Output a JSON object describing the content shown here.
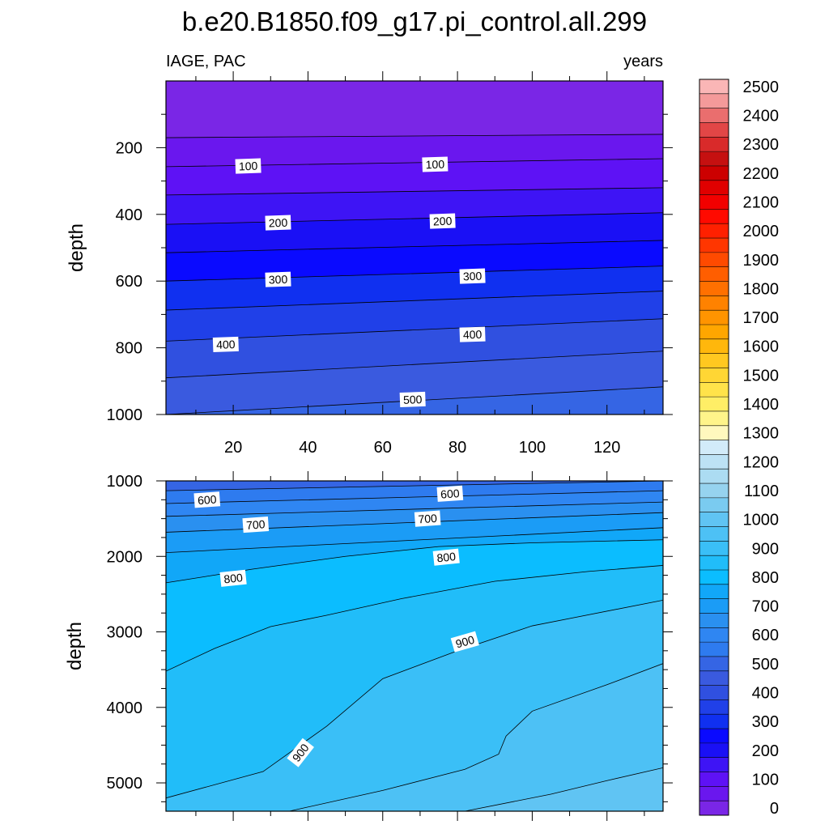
{
  "chart_data": [
    {
      "type": "contour",
      "panel": "upper",
      "title": "b.e20.B1850.f09_g17.pi_control.all.299",
      "left_label": "IAGE, PAC",
      "right_label": "years",
      "xlabel": "",
      "ylabel": "depth",
      "xlim": [
        2,
        135
      ],
      "ylim": [
        1000,
        0
      ],
      "x_ticks": [
        "20",
        "40",
        "60",
        "80",
        "100",
        "120"
      ],
      "y_ticks": [
        "200",
        "400",
        "600",
        "800",
        "1000"
      ],
      "contour_interval": 50,
      "isolines": [
        {
          "level": 50,
          "depth_left": 170,
          "depth_right": 160
        },
        {
          "level": 100,
          "depth_left": 257,
          "depth_right": 233
        },
        {
          "level": 150,
          "depth_left": 342,
          "depth_right": 320
        },
        {
          "level": 200,
          "depth_left": 430,
          "depth_right": 395
        },
        {
          "level": 250,
          "depth_left": 515,
          "depth_right": 478
        },
        {
          "level": 300,
          "depth_left": 600,
          "depth_right": 555
        },
        {
          "level": 350,
          "depth_left": 687,
          "depth_right": 630
        },
        {
          "level": 400,
          "depth_left": 780,
          "depth_right": 713
        },
        {
          "level": 450,
          "depth_left": 890,
          "depth_right": 810
        },
        {
          "level": 500,
          "depth_left": 1000,
          "depth_right": 917
        }
      ],
      "labels": [
        {
          "text": "100",
          "x": 24,
          "depth": 255
        },
        {
          "text": "100",
          "x": 74,
          "depth": 250
        },
        {
          "text": "200",
          "x": 32,
          "depth": 425
        },
        {
          "text": "200",
          "x": 76,
          "depth": 420
        },
        {
          "text": "300",
          "x": 32,
          "depth": 595
        },
        {
          "text": "300",
          "x": 84,
          "depth": 585
        },
        {
          "text": "400",
          "x": 18,
          "depth": 790
        },
        {
          "text": "400",
          "x": 84,
          "depth": 760
        },
        {
          "text": "500",
          "x": 68,
          "depth": 955
        }
      ]
    },
    {
      "type": "contour",
      "panel": "lower",
      "xlabel": "",
      "ylabel": "depth",
      "xlim": [
        2,
        135
      ],
      "ylim": [
        1000,
        5375
      ],
      "y_ticks": [
        "1000",
        "2000",
        "3000",
        "4000",
        "5000"
      ],
      "contour_interval": 50,
      "isolines": [
        {
          "level": 550,
          "points": [
            [
              2,
              1130
            ],
            [
              135,
              1000
            ]
          ]
        },
        {
          "level": 600,
          "points": [
            [
              2,
              1300
            ],
            [
              135,
              1130
            ]
          ]
        },
        {
          "level": 650,
          "points": [
            [
              2,
              1470
            ],
            [
              135,
              1280
            ]
          ]
        },
        {
          "level": 700,
          "points": [
            [
              2,
              1680
            ],
            [
              135,
              1420
            ]
          ]
        },
        {
          "level": 750,
          "points": [
            [
              2,
              1950
            ],
            [
              135,
              1620
            ]
          ]
        },
        {
          "level": 800,
          "points": [
            [
              2,
              2350
            ],
            [
              25,
              2170
            ],
            [
              50,
              2000
            ],
            [
              75,
              1870
            ],
            [
              100,
              1820
            ],
            [
              135,
              1780
            ]
          ]
        },
        {
          "level": 850,
          "points": [
            [
              2,
              3520
            ],
            [
              15,
              3220
            ],
            [
              30,
              2930
            ],
            [
              45,
              2780
            ],
            [
              65,
              2560
            ],
            [
              90,
              2330
            ],
            [
              115,
              2200
            ],
            [
              135,
              2120
            ]
          ]
        },
        {
          "level": 900,
          "points": [
            [
              2,
              5200
            ],
            [
              28,
              4850
            ],
            [
              45,
              4250
            ],
            [
              60,
              3620
            ],
            [
              80,
              3250
            ],
            [
              100,
              2920
            ],
            [
              135,
              2580
            ]
          ]
        },
        {
          "level": 950,
          "points": [
            [
              35,
              5375
            ],
            [
              60,
              5100
            ],
            [
              82,
              4820
            ],
            [
              91,
              4620
            ],
            [
              93,
              4380
            ],
            [
              100,
              4050
            ],
            [
              120,
              3700
            ],
            [
              135,
              3420
            ]
          ]
        },
        {
          "level": 1000,
          "points": [
            [
              82,
              5375
            ],
            [
              105,
              5150
            ],
            [
              120,
              4970
            ],
            [
              135,
              4800
            ]
          ]
        }
      ],
      "labels": [
        {
          "text": "600",
          "x": 13,
          "depth": 1250
        },
        {
          "text": "600",
          "x": 78,
          "depth": 1170
        },
        {
          "text": "700",
          "x": 26,
          "depth": 1580
        },
        {
          "text": "700",
          "x": 72,
          "depth": 1500
        },
        {
          "text": "800",
          "x": 20,
          "depth": 2290
        },
        {
          "text": "800",
          "x": 77,
          "depth": 2010
        },
        {
          "text": "900",
          "x": 82,
          "depth": 3130
        },
        {
          "text": "900",
          "x": 38,
          "depth": 4600
        }
      ]
    },
    {
      "type": "colorbar",
      "levels": [
        0,
        50,
        100,
        150,
        200,
        250,
        300,
        350,
        400,
        450,
        500,
        550,
        600,
        650,
        700,
        750,
        800,
        850,
        900,
        950,
        1000,
        1050,
        1100,
        1150,
        1200,
        1250,
        1300,
        1350,
        1400,
        1450,
        1500,
        1550,
        1600,
        1650,
        1700,
        1750,
        1800,
        1850,
        1900,
        1950,
        2000,
        2050,
        2100,
        2150,
        2200,
        2250,
        2300,
        2350,
        2400,
        2450,
        2500,
        2550
      ],
      "tick_labels": [
        "0",
        "100",
        "200",
        "300",
        "400",
        "500",
        "600",
        "700",
        "800",
        "900",
        "1000",
        "1100",
        "1200",
        "1300",
        "1400",
        "1500",
        "1600",
        "1700",
        "1800",
        "1900",
        "2000",
        "2100",
        "2200",
        "2300",
        "2400",
        "2500"
      ],
      "colors": [
        "#7A26E6",
        "#6A17EE",
        "#5E12F5",
        "#3E14F5",
        "#1A10F5",
        "#0A0AFF",
        "#1030F0",
        "#2040E8",
        "#3050E0",
        "#3A5ADF",
        "#3565E4",
        "#2E7BEF",
        "#2F86F2",
        "#2A90F0",
        "#1B9CF6",
        "#11A7F8",
        "#0BBDFF",
        "#21BDF9",
        "#3ABFF7",
        "#4DC1F5",
        "#60C4F3",
        "#7ACBF0",
        "#96D3EF",
        "#ACDCF2",
        "#BDE2F5",
        "#D2EBF9",
        "#FFF8BE",
        "#FFF48A",
        "#FFEE66",
        "#FFE34A",
        "#FFD634",
        "#FFC820",
        "#FFB70C",
        "#FFA600",
        "#FF9400",
        "#FF8200",
        "#FF7000",
        "#FF5E00",
        "#FF4A00",
        "#FF3600",
        "#FF2000",
        "#FF0A00",
        "#F20000",
        "#E00000",
        "#CC0000",
        "#C51010",
        "#D92A2A",
        "#E24646",
        "#EA6E6E",
        "#F49A9A",
        "#FAB6B6"
      ]
    }
  ]
}
